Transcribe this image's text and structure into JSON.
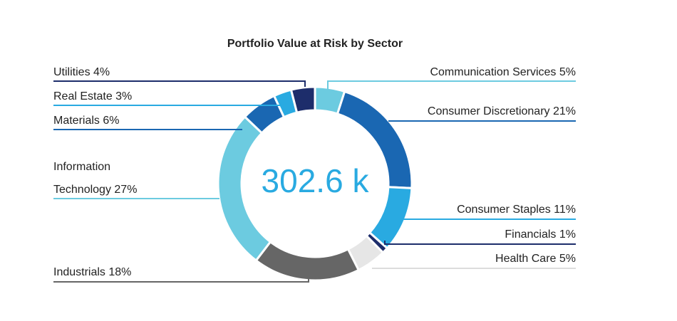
{
  "chart_data": {
    "type": "pie",
    "variant": "donut",
    "title": "Portfolio Value at Risk by Sector",
    "center_label": "302.6 k",
    "unit": "%",
    "slices": [
      {
        "name": "Communication Services",
        "value": 5,
        "label": "Communication Services 5%",
        "color": "#6ccbe0"
      },
      {
        "name": "Consumer Discretionary",
        "value": 21,
        "label": "Consumer Discretionary 21%",
        "color": "#1a67b2"
      },
      {
        "name": "Consumer Staples",
        "value": 11,
        "label": "Consumer Staples 11%",
        "color": "#29aae1"
      },
      {
        "name": "Financials",
        "value": 1,
        "label": "Financials 1%",
        "color": "#1d2d6b"
      },
      {
        "name": "Health Care",
        "value": 5,
        "label": "Health Care 5%",
        "color": "#e6e6e6"
      },
      {
        "name": "Industrials",
        "value": 18,
        "label": "Industrials 18%",
        "color": "#666666"
      },
      {
        "name": "Information Technology",
        "value": 27,
        "label": "Information Technology 27%",
        "label_lines": [
          "Information",
          "Technology 27%"
        ],
        "color": "#6ccbe0"
      },
      {
        "name": "Materials",
        "value": 6,
        "label": "Materials 6%",
        "color": "#1a67b2"
      },
      {
        "name": "Real Estate",
        "value": 3,
        "label": "Real Estate 3%",
        "color": "#29aae1"
      },
      {
        "name": "Utilities",
        "value": 4,
        "label": "Utilities 4%",
        "color": "#1d2d6b"
      }
    ]
  }
}
